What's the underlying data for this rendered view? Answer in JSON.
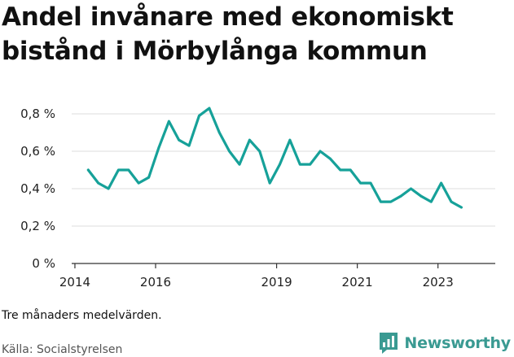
{
  "title_lines": [
    "Andel invånare med ekonomiskt",
    "bistånd i Mörbylånga kommun"
  ],
  "note": "Tre månaders medelvärden.",
  "source": "Källa: Socialstyrelsen",
  "brand": {
    "name": "Newsworthy",
    "icon": "newsworthy-logo-icon",
    "color": "#3a9a92"
  },
  "chart_data": {
    "type": "line",
    "title": "Andel invånare med ekonomiskt bistånd i Mörbylånga kommun",
    "xlabel": "",
    "ylabel": "",
    "xlim": [
      2013.92,
      2024.42
    ],
    "ylim": [
      0,
      0.8
    ],
    "grid": true,
    "line_color": "#16a199",
    "y_ticks": [
      {
        "value": 0,
        "label": "0 %"
      },
      {
        "value": 0.2,
        "label": "0,2 %"
      },
      {
        "value": 0.4,
        "label": "0,4 %"
      },
      {
        "value": 0.6,
        "label": "0,6 %"
      },
      {
        "value": 0.8,
        "label": "0,8 %"
      }
    ],
    "x_ticks": [
      {
        "value": 2014,
        "label": "2014"
      },
      {
        "value": 2016,
        "label": "2016"
      },
      {
        "value": 2019,
        "label": "2019"
      },
      {
        "value": 2021,
        "label": "2021"
      },
      {
        "value": 2023,
        "label": "2023"
      }
    ],
    "series": [
      {
        "name": "",
        "x": [
          2014.33,
          2014.58,
          2014.83,
          2015.08,
          2015.33,
          2015.58,
          2015.83,
          2016.08,
          2016.33,
          2016.58,
          2016.83,
          2017.08,
          2017.33,
          2017.58,
          2017.83,
          2018.08,
          2018.33,
          2018.58,
          2018.83,
          2019.08,
          2019.33,
          2019.58,
          2019.83,
          2020.08,
          2020.33,
          2020.58,
          2020.83,
          2021.08,
          2021.33,
          2021.58,
          2021.83,
          2022.08,
          2022.33,
          2022.58,
          2022.83,
          2023.08,
          2023.33,
          2023.58
        ],
        "values": [
          0.5,
          0.43,
          0.4,
          0.5,
          0.5,
          0.43,
          0.46,
          0.62,
          0.76,
          0.66,
          0.63,
          0.79,
          0.83,
          0.7,
          0.6,
          0.53,
          0.66,
          0.6,
          0.43,
          0.53,
          0.66,
          0.53,
          0.53,
          0.6,
          0.56,
          0.5,
          0.5,
          0.43,
          0.43,
          0.33,
          0.33,
          0.36,
          0.4,
          0.36,
          0.33,
          0.43,
          0.33,
          0.3
        ]
      }
    ]
  }
}
